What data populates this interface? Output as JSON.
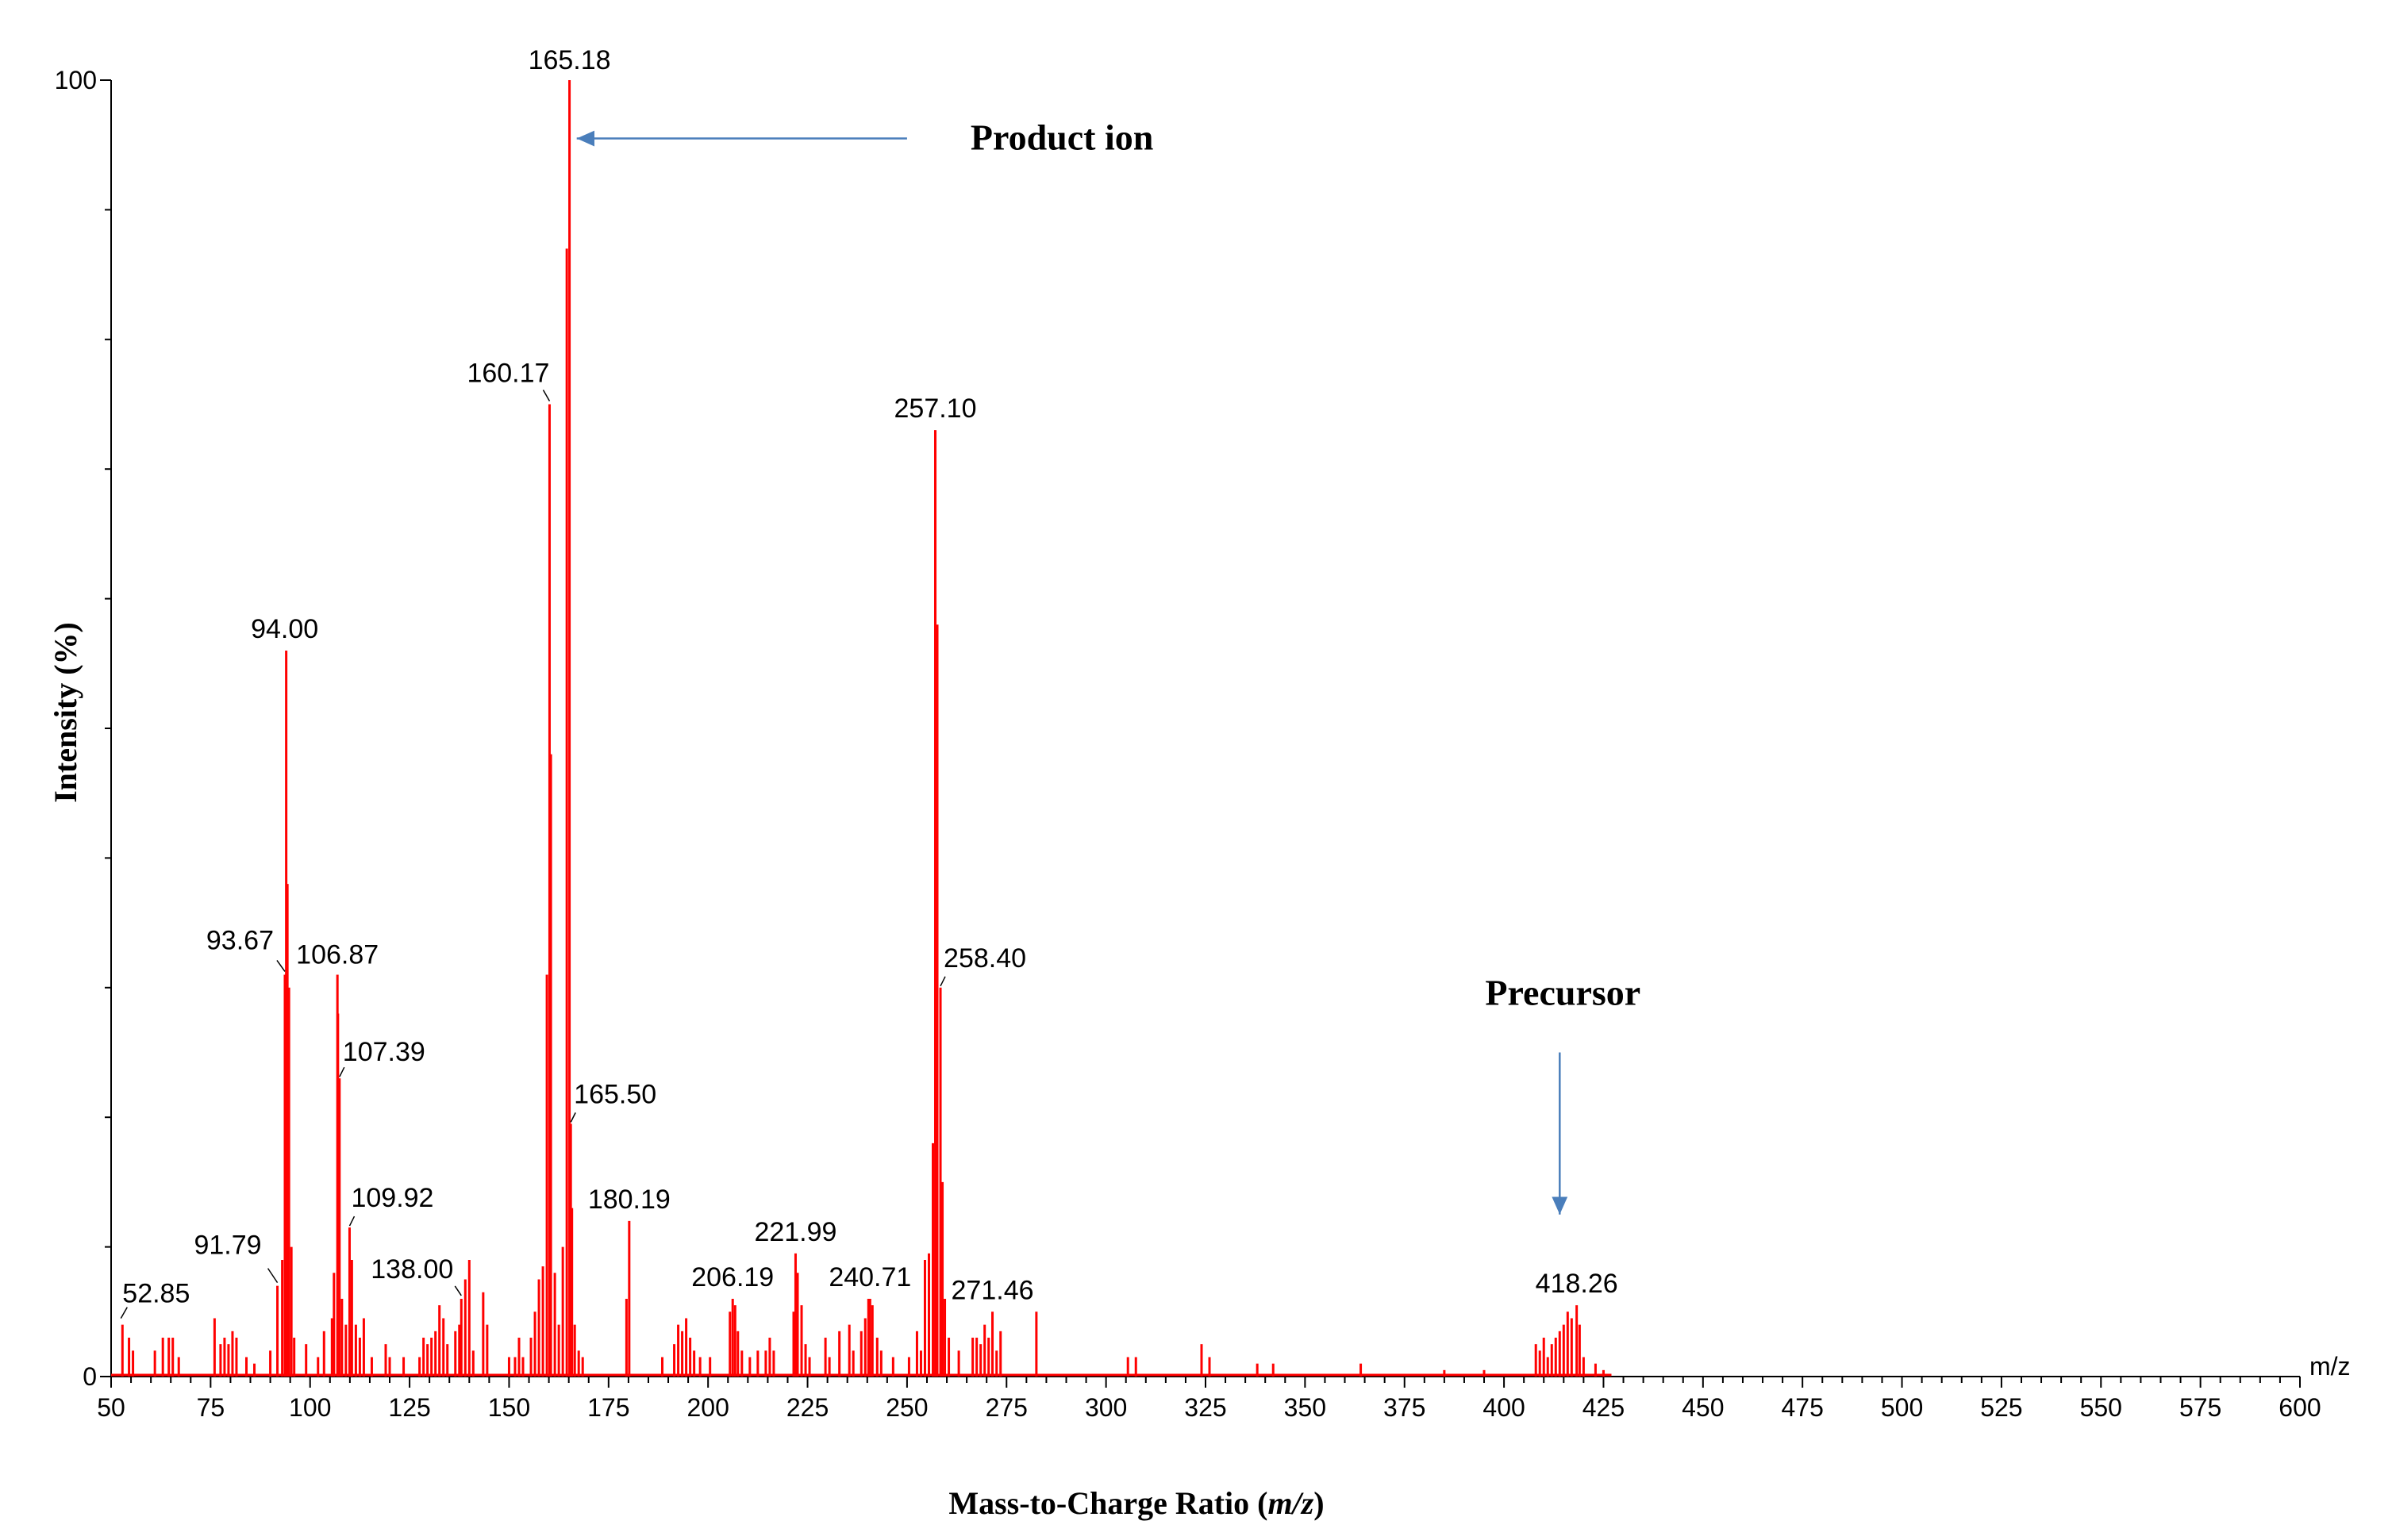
{
  "chart_data": {
    "type": "bar",
    "title": "",
    "xlabel_prefix": "Mass-to-Charge Ratio (",
    "xlabel_italic": "m/z",
    "xlabel_suffix": ")",
    "ylabel": "Intensity (%)",
    "x_unit_label": "m/z",
    "xlim": [
      50,
      600
    ],
    "ylim": [
      0,
      100
    ],
    "x_ticks": [
      "50",
      "75",
      "100",
      "125",
      "150",
      "175",
      "200",
      "225",
      "250",
      "275",
      "300",
      "325",
      "350",
      "375",
      "400",
      "425",
      "450",
      "475",
      "500",
      "525",
      "550",
      "575",
      "600"
    ],
    "y_ticks": [
      "0",
      "100"
    ],
    "bar_color": "#ff0000",
    "annotation_color": "#4a7ebb",
    "labeled_peaks": [
      {
        "mz": 52.85,
        "label": "52.85",
        "intensity": 4
      },
      {
        "mz": 91.79,
        "label": "91.79",
        "intensity": 7
      },
      {
        "mz": 93.67,
        "label": "93.67",
        "intensity": 31
      },
      {
        "mz": 94.0,
        "label": "94.00",
        "intensity": 56
      },
      {
        "mz": 106.87,
        "label": "106.87",
        "intensity": 31
      },
      {
        "mz": 107.39,
        "label": "107.39",
        "intensity": 23
      },
      {
        "mz": 109.92,
        "label": "109.92",
        "intensity": 11.5
      },
      {
        "mz": 138.0,
        "label": "138.00",
        "intensity": 6
      },
      {
        "mz": 160.17,
        "label": "160.17",
        "intensity": 75
      },
      {
        "mz": 165.18,
        "label": "165.18",
        "intensity": 100
      },
      {
        "mz": 165.5,
        "label": "165.50",
        "intensity": 19.5
      },
      {
        "mz": 180.19,
        "label": "180.19",
        "intensity": 12
      },
      {
        "mz": 206.19,
        "label": "206.19",
        "intensity": 6
      },
      {
        "mz": 221.99,
        "label": "221.99",
        "intensity": 9.5
      },
      {
        "mz": 240.71,
        "label": "240.71",
        "intensity": 6
      },
      {
        "mz": 257.1,
        "label": "257.10",
        "intensity": 73
      },
      {
        "mz": 258.4,
        "label": "258.40",
        "intensity": 30
      },
      {
        "mz": 271.46,
        "label": "271.46",
        "intensity": 5
      },
      {
        "mz": 418.26,
        "label": "418.26",
        "intensity": 5.5
      }
    ],
    "minor_peaks": [
      [
        54.5,
        3
      ],
      [
        55.5,
        2
      ],
      [
        61,
        2
      ],
      [
        63,
        3
      ],
      [
        64.5,
        3
      ],
      [
        65.5,
        3
      ],
      [
        67,
        1.5
      ],
      [
        76,
        4.5
      ],
      [
        77.5,
        2.5
      ],
      [
        78.5,
        3
      ],
      [
        79.5,
        2.5
      ],
      [
        80.5,
        3.5
      ],
      [
        81.5,
        3
      ],
      [
        84,
        1.5
      ],
      [
        86,
        1
      ],
      [
        90,
        2
      ],
      [
        93,
        9
      ],
      [
        94.3,
        38
      ],
      [
        94.7,
        30
      ],
      [
        95.3,
        10
      ],
      [
        96,
        3
      ],
      [
        99,
        2.5
      ],
      [
        102,
        1.5
      ],
      [
        103.5,
        3.5
      ],
      [
        105.5,
        4.5
      ],
      [
        106,
        8
      ],
      [
        107,
        28
      ],
      [
        108,
        6
      ],
      [
        109,
        4
      ],
      [
        110.5,
        9
      ],
      [
        111.5,
        4
      ],
      [
        112.5,
        3
      ],
      [
        113.5,
        4.5
      ],
      [
        115.5,
        1.5
      ],
      [
        119,
        2.5
      ],
      [
        120,
        1.5
      ],
      [
        123.5,
        1.5
      ],
      [
        127.5,
        1.5
      ],
      [
        128.5,
        3
      ],
      [
        129.5,
        2.5
      ],
      [
        130.5,
        3
      ],
      [
        131.5,
        3.5
      ],
      [
        132.5,
        5.5
      ],
      [
        133.5,
        4.5
      ],
      [
        134.5,
        2.5
      ],
      [
        136.5,
        3.5
      ],
      [
        137.5,
        4
      ],
      [
        139,
        7.5
      ],
      [
        140,
        9
      ],
      [
        141,
        2
      ],
      [
        143.5,
        6.5
      ],
      [
        144.5,
        4
      ],
      [
        150,
        1.5
      ],
      [
        151.5,
        1.5
      ],
      [
        152.5,
        3
      ],
      [
        153.5,
        1.5
      ],
      [
        155.5,
        3
      ],
      [
        156.5,
        5
      ],
      [
        157.5,
        7.5
      ],
      [
        158.5,
        8.5
      ],
      [
        159.5,
        31
      ],
      [
        160.5,
        48
      ],
      [
        161.5,
        8
      ],
      [
        162.5,
        4
      ],
      [
        163.5,
        10
      ],
      [
        164.5,
        87
      ],
      [
        165.8,
        13
      ],
      [
        166.5,
        4
      ],
      [
        167.5,
        2
      ],
      [
        168.5,
        1.5
      ],
      [
        179.5,
        6
      ],
      [
        188.5,
        1.5
      ],
      [
        191.5,
        2.5
      ],
      [
        192.5,
        4
      ],
      [
        193.5,
        3.5
      ],
      [
        194.5,
        4.5
      ],
      [
        195.5,
        3
      ],
      [
        196.5,
        2
      ],
      [
        198,
        1.5
      ],
      [
        200.5,
        1.5
      ],
      [
        205.5,
        5
      ],
      [
        206.8,
        5.5
      ],
      [
        207.5,
        3.5
      ],
      [
        208.5,
        2
      ],
      [
        210.5,
        1.5
      ],
      [
        212.5,
        2
      ],
      [
        214.5,
        2
      ],
      [
        215.5,
        3
      ],
      [
        216.5,
        2
      ],
      [
        221.5,
        5
      ],
      [
        222.5,
        8
      ],
      [
        223.5,
        5.5
      ],
      [
        224.5,
        2.5
      ],
      [
        225.5,
        1.5
      ],
      [
        229.5,
        3
      ],
      [
        230.5,
        1.5
      ],
      [
        233,
        3.5
      ],
      [
        235.5,
        4
      ],
      [
        236.5,
        2
      ],
      [
        238.5,
        3.5
      ],
      [
        239.5,
        4.5
      ],
      [
        240.3,
        6
      ],
      [
        241.3,
        5.5
      ],
      [
        242.5,
        3
      ],
      [
        243.5,
        2
      ],
      [
        246.5,
        1.5
      ],
      [
        250.5,
        1.5
      ],
      [
        252.5,
        3.5
      ],
      [
        253.5,
        2
      ],
      [
        254.5,
        9
      ],
      [
        255.5,
        9.5
      ],
      [
        256.5,
        18
      ],
      [
        257.6,
        58
      ],
      [
        258.9,
        15
      ],
      [
        259.5,
        6
      ],
      [
        260.5,
        3
      ],
      [
        263,
        2
      ],
      [
        266.5,
        3
      ],
      [
        267.5,
        3
      ],
      [
        268.5,
        2.5
      ],
      [
        269.5,
        4
      ],
      [
        270.5,
        3
      ],
      [
        272.5,
        2
      ],
      [
        273.5,
        3.5
      ],
      [
        282.5,
        5
      ],
      [
        305.5,
        1.5
      ],
      [
        307.5,
        1.5
      ],
      [
        324,
        2.5
      ],
      [
        326,
        1.5
      ],
      [
        338,
        1
      ],
      [
        342,
        1
      ],
      [
        364,
        1
      ],
      [
        385,
        0.5
      ],
      [
        395,
        0.5
      ],
      [
        408,
        2.5
      ],
      [
        409,
        2
      ],
      [
        410,
        3
      ],
      [
        411,
        1.5
      ],
      [
        412,
        2.5
      ],
      [
        413,
        3
      ],
      [
        414,
        3.5
      ],
      [
        415,
        4
      ],
      [
        416,
        5
      ],
      [
        417,
        4.5
      ],
      [
        419,
        4
      ],
      [
        420,
        1.5
      ],
      [
        423,
        1
      ],
      [
        425,
        0.5
      ]
    ],
    "annotations": [
      {
        "text": "Product ion",
        "arrow": "left",
        "target_mz": 167,
        "target_intensity": 95.5,
        "arrow_start_mz": 250
      },
      {
        "text": "Precursor",
        "arrow": "down",
        "target_mz": 414,
        "target_intensity": 12.5,
        "arrow_start_intensity": 25
      }
    ]
  }
}
